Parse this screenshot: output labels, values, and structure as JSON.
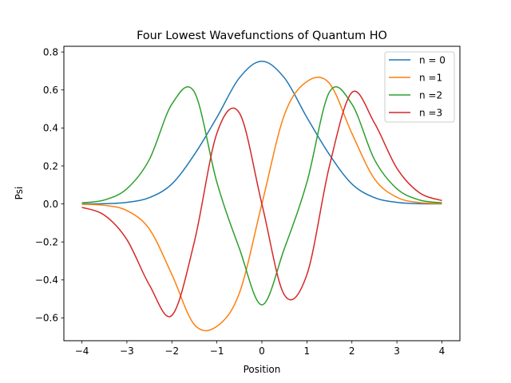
{
  "chart_data": {
    "type": "line",
    "title": "Four Lowest Wavefunctions of Quantum HO",
    "xlabel": "Position",
    "ylabel": "Psi",
    "xlim": [
      -4.4,
      4.4
    ],
    "ylim": [
      -0.72,
      0.83
    ],
    "xticks": [
      -4,
      -3,
      -2,
      -1,
      0,
      1,
      2,
      3,
      4
    ],
    "xtick_labels": [
      "−4",
      "−3",
      "−2",
      "−1",
      "0",
      "1",
      "2",
      "3",
      "4"
    ],
    "yticks": [
      -0.6,
      -0.4,
      -0.2,
      0.0,
      0.2,
      0.4,
      0.6,
      0.8
    ],
    "ytick_labels": [
      "−0.6",
      "−0.4",
      "−0.2",
      "0.0",
      "0.2",
      "0.4",
      "0.6",
      "0.8"
    ],
    "grid": false,
    "legend_position": "top-right",
    "x_range": [
      -4,
      4
    ],
    "series": [
      {
        "name": "n = 0",
        "color": "#1f77b4",
        "values": [
          0.0003,
          0.0014,
          0.0083,
          0.0331,
          0.1051,
          0.2599,
          0.4556,
          0.6637,
          0.7511,
          0.6637,
          0.4556,
          0.2599,
          0.1051,
          0.0331,
          0.0083,
          0.0014,
          0.0003
        ]
      },
      {
        "name": "n =1",
        "color": "#ff7f0e",
        "values": [
          -0.0015,
          -0.0072,
          -0.035,
          -0.1324,
          -0.3716,
          -0.6354,
          -0.6442,
          -0.4692,
          0.0,
          0.4692,
          0.6442,
          0.6354,
          0.3716,
          0.1324,
          0.035,
          0.0072,
          0.0015
        ]
      },
      {
        "name": "n =2",
        "color": "#2ca02c",
        "values": [
          0.0057,
          0.0209,
          0.0799,
          0.2343,
          0.5256,
          0.5889,
          0.1139,
          -0.2346,
          -0.5311,
          -0.2346,
          0.1139,
          0.5889,
          0.5256,
          0.2343,
          0.0799,
          0.0209,
          0.0057
        ]
      },
      {
        "name": "n =3",
        "color": "#d62728",
        "values": [
          -0.0177,
          -0.0591,
          -0.1878,
          -0.4266,
          -0.5868,
          -0.1987,
          0.372,
          0.4789,
          0.0,
          -0.4789,
          -0.372,
          0.1987,
          0.5868,
          0.4266,
          0.1878,
          0.0591,
          0.0177
        ]
      }
    ]
  }
}
